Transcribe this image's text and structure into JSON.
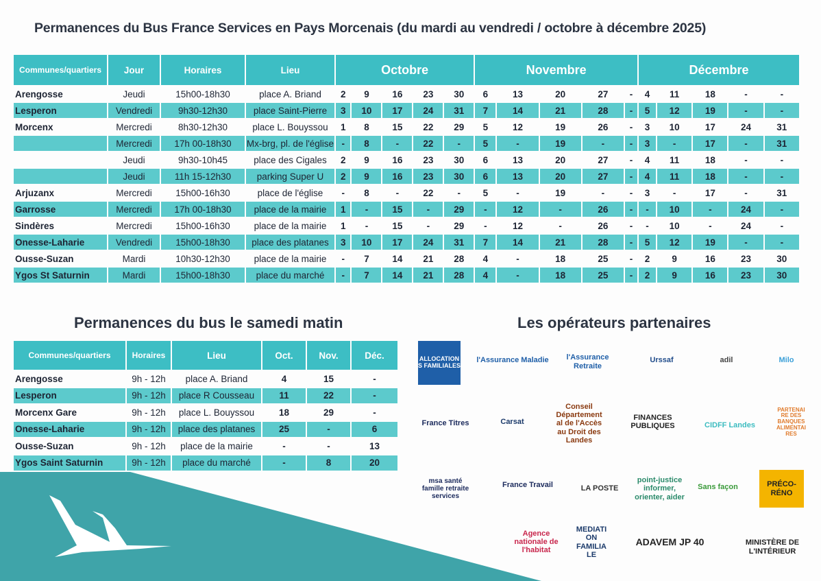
{
  "main_title": "Permanences du Bus France Services en Pays Morcenais (du mardi au vendredi / octobre à décembre 2025)",
  "main_table": {
    "headers": [
      "Communes/quartiers",
      "Jour",
      "Horaires",
      "Lieu"
    ],
    "months": [
      "Octobre",
      "Novembre",
      "Décembre"
    ],
    "rows": [
      {
        "commune": "Arengosse",
        "jour": "Jeudi",
        "horaires": "15h00-18h30",
        "lieu": "place A. Briand",
        "dates": [
          "2",
          "9",
          "16",
          "23",
          "30",
          "6",
          "13",
          "20",
          "27",
          "-",
          "4",
          "11",
          "18",
          "-",
          "-"
        ]
      },
      {
        "commune": "Lesperon",
        "jour": "Vendredi",
        "horaires": "9h30-12h30",
        "lieu": "place Saint-Pierre",
        "dates": [
          "3",
          "10",
          "17",
          "24",
          "31",
          "7",
          "14",
          "21",
          "28",
          "-",
          "5",
          "12",
          "19",
          "-",
          "-"
        ]
      },
      {
        "commune": "Morcenx",
        "jour": "Mercredi",
        "horaires": "8h30-12h30",
        "lieu": "place L. Bouyssou",
        "dates": [
          "1",
          "8",
          "15",
          "22",
          "29",
          "5",
          "12",
          "19",
          "26",
          "-",
          "3",
          "10",
          "17",
          "24",
          "31"
        ]
      },
      {
        "commune": "",
        "jour": "Mercredi",
        "horaires": "17h 00-18h30",
        "lieu": "Mx-brg, pl. de l'église",
        "dates": [
          "-",
          "8",
          "-",
          "22",
          "-",
          "5",
          "-",
          "19",
          "-",
          "-",
          "3",
          "-",
          "17",
          "-",
          "31"
        ]
      },
      {
        "commune": "",
        "jour": "Jeudi",
        "horaires": "9h30-10h45",
        "lieu": "place  des Cigales",
        "dates": [
          "2",
          "9",
          "16",
          "23",
          "30",
          "6",
          "13",
          "20",
          "27",
          "-",
          "4",
          "11",
          "18",
          "-",
          "-"
        ]
      },
      {
        "commune": "",
        "jour": "Jeudi",
        "horaires": "11h 15-12h30",
        "lieu": "parking Super U",
        "dates": [
          "2",
          "9",
          "16",
          "23",
          "30",
          "6",
          "13",
          "20",
          "27",
          "-",
          "4",
          "11",
          "18",
          "-",
          "-"
        ]
      },
      {
        "commune": "Arjuzanx",
        "jour": "Mercredi",
        "horaires": "15h00-16h30",
        "lieu": "place de l'église",
        "dates": [
          "-",
          "8",
          "-",
          "22",
          "-",
          "5",
          "-",
          "19",
          "-",
          "-",
          "3",
          "-",
          "17",
          "-",
          "31"
        ]
      },
      {
        "commune": "Garrosse",
        "jour": "Mercredi",
        "horaires": "17h 00-18h30",
        "lieu": "place de la mairie",
        "dates": [
          "1",
          "-",
          "15",
          "-",
          "29",
          "-",
          "12",
          "-",
          "26",
          "-",
          "-",
          "10",
          "-",
          "24",
          "-"
        ]
      },
      {
        "commune": "Sindères",
        "jour": "Mercredi",
        "horaires": "15h00-16h30",
        "lieu": "place de la mairie",
        "dates": [
          "1",
          "-",
          "15",
          "-",
          "29",
          "-",
          "12",
          "-",
          "26",
          "-",
          "-",
          "10",
          "-",
          "24",
          "-"
        ]
      },
      {
        "commune": "Onesse-Laharie",
        "jour": "Vendredi",
        "horaires": "15h00-18h30",
        "lieu": "place des platanes",
        "dates": [
          "3",
          "10",
          "17",
          "24",
          "31",
          "7",
          "14",
          "21",
          "28",
          "-",
          "5",
          "12",
          "19",
          "-",
          "-"
        ]
      },
      {
        "commune": "Ousse-Suzan",
        "jour": "Mardi",
        "horaires": "10h30-12h30",
        "lieu": "place de la mairie",
        "dates": [
          "-",
          "7",
          "14",
          "21",
          "28",
          "4",
          "-",
          "18",
          "25",
          "-",
          "2",
          "9",
          "16",
          "23",
          "30"
        ]
      },
      {
        "commune": "Ygos St Saturnin",
        "jour": "Mardi",
        "horaires": "15h00-18h30",
        "lieu": "place du marché",
        "dates": [
          "-",
          "7",
          "14",
          "21",
          "28",
          "4",
          "-",
          "18",
          "25",
          "-",
          "2",
          "9",
          "16",
          "23",
          "30"
        ]
      }
    ]
  },
  "saturday_title": "Permanences du bus le samedi matin",
  "saturday_table": {
    "headers": [
      "Communes/quartiers",
      "Horaires",
      "Lieu",
      "Oct.",
      "Nov.",
      "Déc."
    ],
    "rows": [
      {
        "commune": "Arengosse",
        "horaires": "9h - 12h",
        "lieu": "place A. Briand",
        "oct": "4",
        "nov": "15",
        "dec": "-"
      },
      {
        "commune": "Lesperon",
        "horaires": "9h - 12h",
        "lieu": "place R Cousseau",
        "oct": "11",
        "nov": "22",
        "dec": "-"
      },
      {
        "commune": "Morcenx Gare",
        "horaires": "9h - 12h",
        "lieu": "place L. Bouyssou",
        "oct": "18",
        "nov": "29",
        "dec": "-"
      },
      {
        "commune": "Onesse-Laharie",
        "horaires": "9h - 12h",
        "lieu": "place des platanes",
        "oct": "25",
        "nov": "-",
        "dec": "6"
      },
      {
        "commune": "Ousse-Suzan",
        "horaires": "9h - 12h",
        "lieu": "place de la mairie",
        "oct": "-",
        "nov": "-",
        "dec": "13"
      },
      {
        "commune": "Ygos Saint Saturnin",
        "horaires": "9h - 12h",
        "lieu": "place du marché",
        "oct": "-",
        "nov": "8",
        "dec": "20"
      }
    ]
  },
  "partners_title": "Les opérateurs partenaires",
  "partners": [
    {
      "name": "ALLOCATIONS FAMILIALES",
      "color": "#1f5fa8"
    },
    {
      "name": "l'Assurance Maladie",
      "color": "#1f5fa8"
    },
    {
      "name": "l'Assurance Retraite",
      "color": "#1f5fa8"
    },
    {
      "name": "Urssaf",
      "color": "#1f4b8a"
    },
    {
      "name": "adil",
      "color": "#444"
    },
    {
      "name": "Milo",
      "color": "#3a9fd8"
    },
    {
      "name": "France Titres",
      "color": "#1b2a5c"
    },
    {
      "name": "Carsat",
      "color": "#1b3a6a"
    },
    {
      "name": "Conseil Départemental de l'Accès au Droit des Landes",
      "color": "#8a3a10"
    },
    {
      "name": "FINANCES PUBLIQUES",
      "color": "#222"
    },
    {
      "name": "CIDFF Landes",
      "color": "#3cbcc0"
    },
    {
      "name": "PARTENAIRE DES BANQUES ALIMENTAIRES",
      "color": "#e07a2a"
    },
    {
      "name": "msa santé famille retraite services",
      "color": "#1b2a5c"
    },
    {
      "name": "France Travail",
      "color": "#1b2a5c"
    },
    {
      "name": "LA POSTE",
      "color": "#333"
    },
    {
      "name": "point-justice informer, orienter, aider",
      "color": "#2a8a6a"
    },
    {
      "name": "Sans façon",
      "color": "#3a9a3a"
    },
    {
      "name": "PRÉCO-RÉNO",
      "color": "#222"
    },
    {
      "name": "Agence nationale de l'habitat",
      "color": "#c8264c"
    },
    {
      "name": "MEDIATION FAMILIALE",
      "color": "#1b3a6a"
    },
    {
      "name": "ADAVEM JP 40",
      "color": "#222"
    },
    {
      "name": "MINISTÈRE DE L'INTÉRIEUR",
      "color": "#222"
    }
  ],
  "colors": {
    "header": "#3dbec4",
    "band": "#5ccacc",
    "shape": "#3fa4a9"
  }
}
